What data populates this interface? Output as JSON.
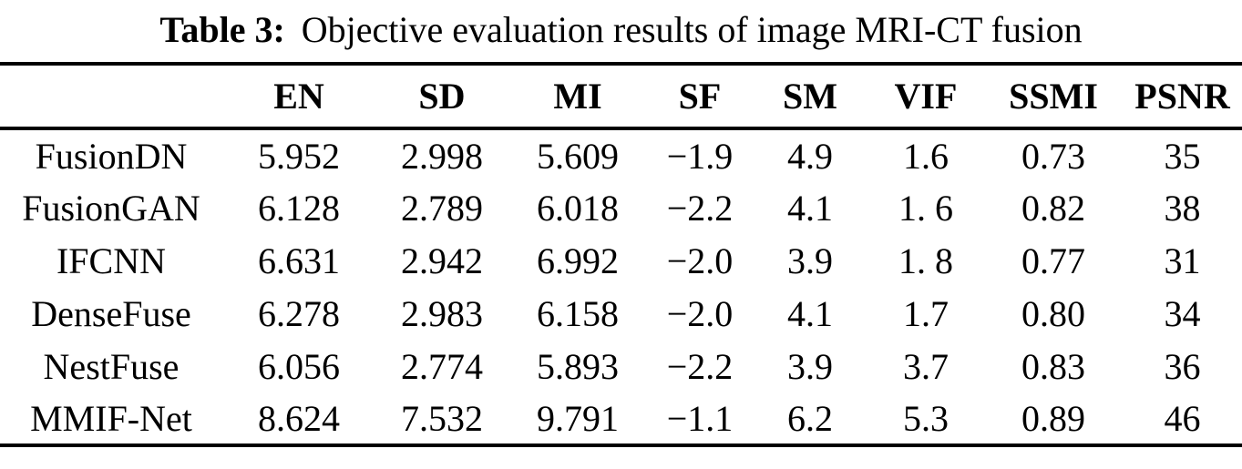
{
  "page": {
    "background": "#ffffff",
    "text_color": "#000000"
  },
  "caption": {
    "label": "Table 3:",
    "text": "Objective evaluation results of image MRI-CT fusion"
  },
  "table": {
    "columns": [
      "",
      "EN",
      "SD",
      "MI",
      "SF",
      "SM",
      "VIF",
      "SSMI",
      "PSNR"
    ],
    "rows": [
      {
        "method": "FusionDN",
        "values": [
          "5.952",
          "2.998",
          "5.609",
          "−1.9",
          "4.9",
          "1.6",
          "0.73",
          "35"
        ]
      },
      {
        "method": "FusionGAN",
        "values": [
          "6.128",
          "2.789",
          "6.018",
          "−2.2",
          "4.1",
          "1. 6",
          "0.82",
          "38"
        ]
      },
      {
        "method": "IFCNN",
        "values": [
          "6.631",
          "2.942",
          "6.992",
          "−2.0",
          "3.9",
          "1. 8",
          "0.77",
          "31"
        ]
      },
      {
        "method": "DenseFuse",
        "values": [
          "6.278",
          "2.983",
          "6.158",
          "−2.0",
          "4.1",
          "1.7",
          "0.80",
          "34"
        ]
      },
      {
        "method": "NestFuse",
        "values": [
          "6.056",
          "2.774",
          "5.893",
          "−2.2",
          "3.9",
          "3.7",
          "0.83",
          "36"
        ]
      },
      {
        "method": "MMIF-Net",
        "values": [
          "8.624",
          "7.532",
          "9.791",
          "−1.1",
          "6.2",
          "5.3",
          "0.89",
          "46"
        ]
      }
    ]
  }
}
